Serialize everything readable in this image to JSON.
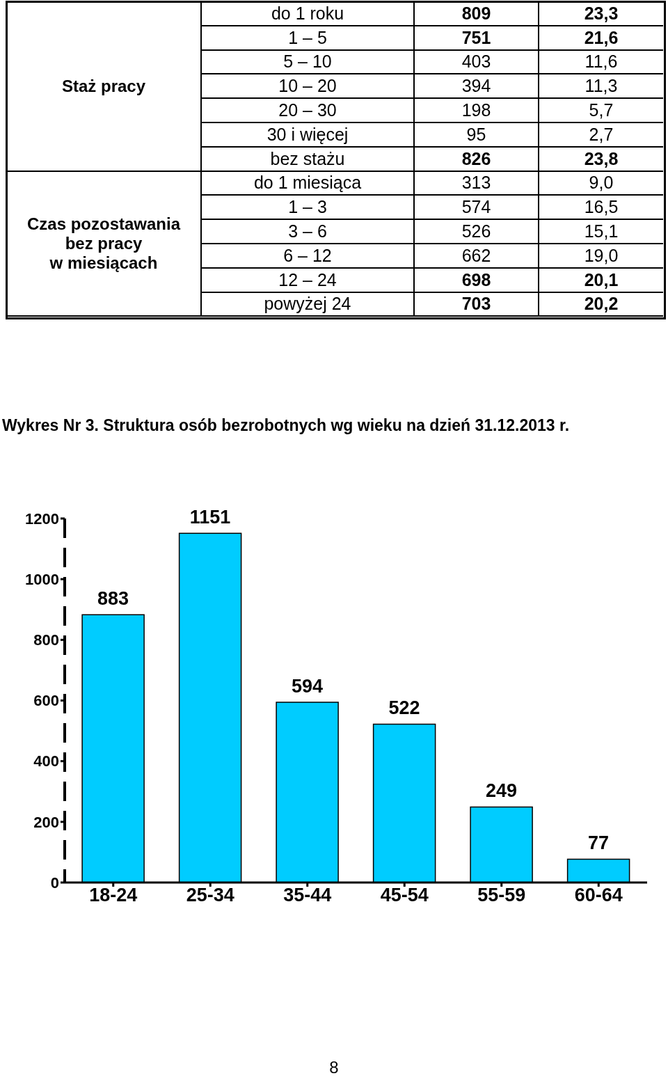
{
  "chart_data": [
    {
      "type": "other",
      "categories": [
        "do 1 roku",
        "1 – 5",
        "5 – 10",
        "10 – 20",
        "20 – 30",
        "30 i więcej",
        "bez stażu",
        "do 1 miesiąca",
        "1 – 3",
        "3 – 6",
        "6 – 12",
        "12 – 24",
        "powyżej 24"
      ],
      "series": [
        {
          "values": [
            809,
            751,
            403,
            394,
            198,
            95,
            826,
            313,
            574,
            526,
            662,
            698,
            703
          ],
          "value_labels": [
            "809",
            "751",
            "403",
            "394",
            "198",
            "95",
            "826",
            "313",
            "574",
            "526",
            "662",
            "698",
            "703"
          ]
        },
        {
          "values": [
            23.3,
            21.6,
            11.6,
            11.3,
            5.7,
            2.7,
            23.8,
            9.0,
            16.5,
            15.1,
            19.0,
            20.1,
            20.2
          ],
          "value_labels": [
            "23,3",
            "21,6",
            "11,6",
            "11,3",
            "5,7",
            "2,7",
            "23,8",
            "9,0",
            "16,5",
            "15,1",
            "19,0",
            "20,1",
            "20,2"
          ]
        }
      ],
      "annotations": [
        "Staż pracy",
        "Czas pozostawania\nbez pracy\nw miesiącach"
      ]
    },
    {
      "type": "bar",
      "title": "Wykres Nr 3. Struktura osób bezrobotnych wg wieku na dzień 31.12.2013 r.",
      "categories": [
        "18-24",
        "25-34",
        "35-44",
        "45-54",
        "55-59",
        "60-64"
      ],
      "values": [
        883,
        1151,
        594,
        522,
        249,
        77
      ],
      "color": "#00ccff",
      "ylim": [
        0,
        1200
      ],
      "yticks": [
        0,
        200,
        400,
        600,
        800,
        1000,
        1200
      ],
      "grid": false,
      "data_labels": true,
      "annotations": [
        "8"
      ]
    }
  ]
}
